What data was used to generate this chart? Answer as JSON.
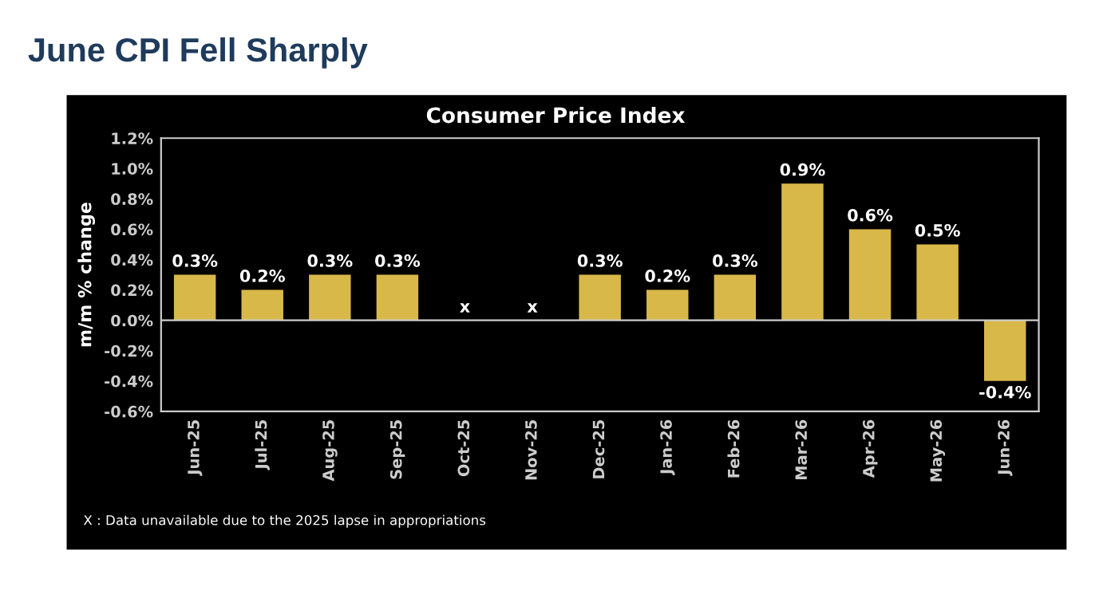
{
  "chart_data": {
    "type": "bar",
    "title": "June CPI Fell Sharply",
    "subtitle": "Consumer Price Index",
    "ylabel": "m/m % change",
    "categories": [
      "Jun-25",
      "Jul-25",
      "Aug-25",
      "Sep-25",
      "Oct-25",
      "Nov-25",
      "Dec-25",
      "Jan-26",
      "Feb-26",
      "Mar-26",
      "Apr-26",
      "May-26",
      "Jun-26"
    ],
    "values": [
      0.3,
      0.2,
      0.3,
      0.3,
      null,
      null,
      0.3,
      0.2,
      0.3,
      0.9,
      0.6,
      0.5,
      -0.4
    ],
    "value_labels": [
      "0.3%",
      "0.2%",
      "0.3%",
      "0.3%",
      "x",
      "x",
      "0.3%",
      "0.2%",
      "0.3%",
      "0.9%",
      "0.6%",
      "0.5%",
      "-0.4%"
    ],
    "color": "#d9b84a",
    "ylim": [
      -0.6,
      1.2
    ],
    "yticks": [
      {
        "value": -0.6,
        "label": "-0.6%"
      },
      {
        "value": -0.4,
        "label": "-0.4%"
      },
      {
        "value": -0.2,
        "label": "-0.2%"
      },
      {
        "value": 0,
        "label": "0.0%"
      },
      {
        "value": 0.2,
        "label": "0.2%"
      },
      {
        "value": 0.4,
        "label": "0.4%"
      },
      {
        "value": 0.6,
        "label": "0.6%"
      },
      {
        "value": 0.8,
        "label": "0.8%"
      },
      {
        "value": 1.0,
        "label": "1.0%"
      },
      {
        "value": 1.2,
        "label": "1.2%"
      }
    ],
    "ref_lines": [
      {
        "axis": "y",
        "value": 0,
        "color": "#cccccc"
      }
    ],
    "grid": false,
    "legend": false,
    "annotations": [
      "X : Data unavailable due to the 2025 lapse in appropriations"
    ]
  }
}
